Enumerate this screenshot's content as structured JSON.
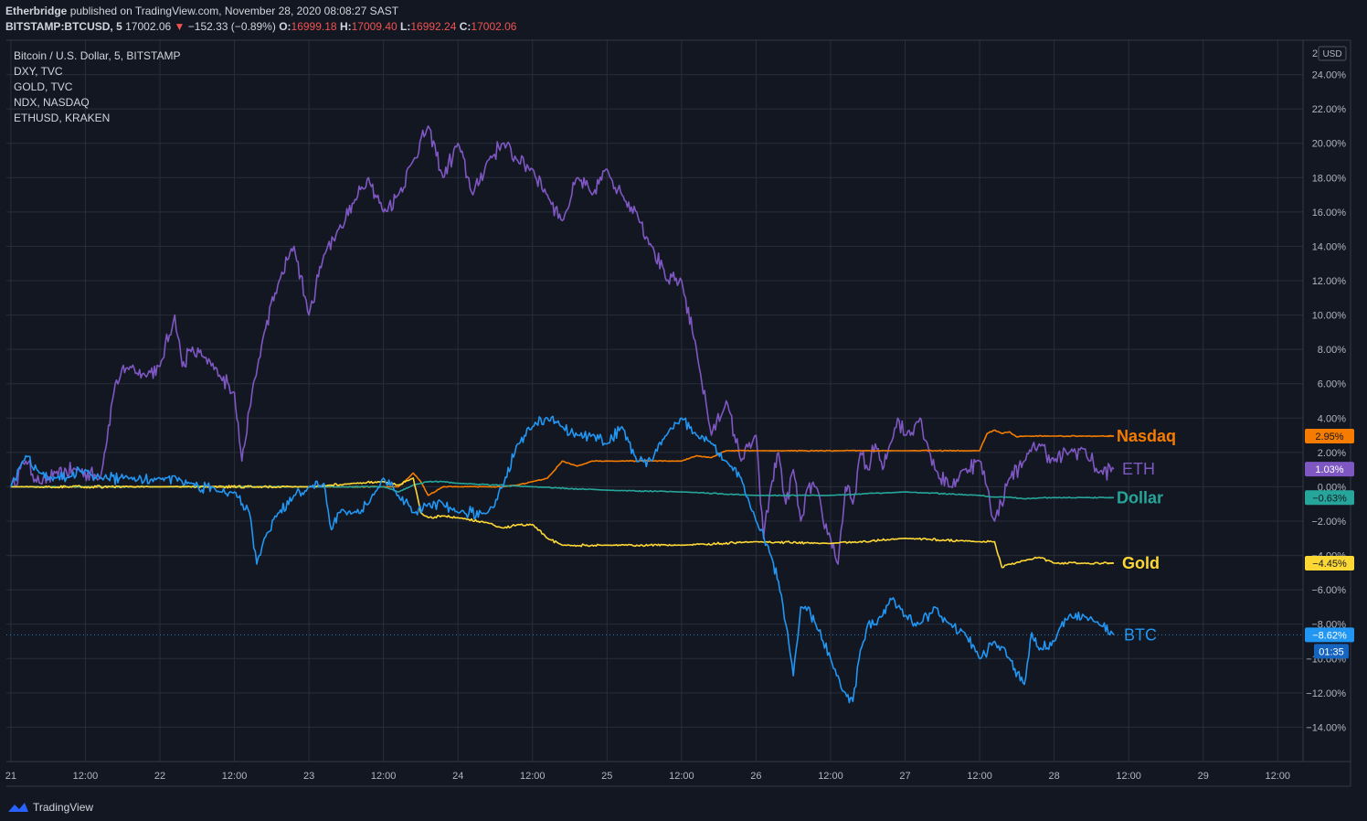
{
  "header": {
    "author": "Etherbridge",
    "published_text": "published on TradingView.com, November 28, 2020 08:08:27 SAST",
    "symbol": "BITSTAMP:BTCUSD, 5",
    "last": "17002.06",
    "change_arrow": "▼",
    "change": "−152.33 (−0.89%)",
    "open_label": "O:",
    "open": "16999.18",
    "high_label": "H:",
    "high": "17009.40",
    "low_label": "L:",
    "low": "16992.24",
    "close_label": "C:",
    "close": "17002.06"
  },
  "legend": [
    "Bitcoin / U.S. Dollar, 5, BITSTAMP",
    "DXY, TVC",
    "GOLD, TVC",
    "NDX, NASDAQ",
    "ETHUSD, KRAKEN"
  ],
  "footer": {
    "brand": "TradingView"
  },
  "colors": {
    "background": "#131722",
    "grid": "#2a2e39",
    "text": "#d1d4dc",
    "axis_text": "#b2b5be",
    "negative": "#ef5350"
  },
  "chart_data": {
    "type": "line",
    "title": "",
    "xlabel": "",
    "ylabel": "",
    "currency_badge": "USD",
    "y_axis_top_label": "2",
    "y_scale": "percent",
    "ylim": [
      -16,
      26
    ],
    "y_ticks": [
      24,
      22,
      20,
      18,
      16,
      14,
      12,
      10,
      8,
      6,
      4,
      2,
      0,
      -2,
      -4,
      -6,
      -8,
      -10,
      -12,
      -14
    ],
    "y_tick_labels": [
      "24.00%",
      "22.00%",
      "20.00%",
      "18.00%",
      "16.00%",
      "14.00%",
      "12.00%",
      "10.00%",
      "8.00%",
      "6.00%",
      "4.00%",
      "2.00%",
      "0.00%",
      "−2.00%",
      "−4.00%",
      "−6.00%",
      "−8.00%",
      "−10.00%",
      "−12.00%",
      "−14.00%"
    ],
    "x_unit": "days since Nov 21 00:00",
    "xlim": [
      -0.03,
      8.67
    ],
    "x_ticks": [
      0,
      0.5,
      1,
      1.5,
      2,
      2.5,
      3,
      3.5,
      4,
      4.5,
      5,
      5.5,
      6,
      6.5,
      7,
      7.5,
      8,
      8.5
    ],
    "x_tick_labels": [
      "21",
      "12:00",
      "22",
      "12:00",
      "23",
      "12:00",
      "24",
      "12:00",
      "25",
      "12:00",
      "26",
      "12:00",
      "27",
      "12:00",
      "28",
      "12:00",
      "29",
      "12:00"
    ],
    "grid": true,
    "series": [
      {
        "name": "ETH",
        "color": "#7e57c2",
        "last_label": "1.03%",
        "x": [
          0,
          0.1,
          0.2,
          0.3,
          0.45,
          0.6,
          0.7,
          0.8,
          0.9,
          1.0,
          1.1,
          1.15,
          1.2,
          1.3,
          1.4,
          1.5,
          1.55,
          1.6,
          1.7,
          1.8,
          1.9,
          2.0,
          2.1,
          2.2,
          2.3,
          2.4,
          2.5,
          2.6,
          2.7,
          2.8,
          2.9,
          3.0,
          3.1,
          3.2,
          3.3,
          3.4,
          3.5,
          3.6,
          3.7,
          3.8,
          3.9,
          4.0,
          4.1,
          4.2,
          4.3,
          4.4,
          4.5,
          4.6,
          4.7,
          4.8,
          4.9,
          5.0,
          5.05,
          5.1,
          5.15,
          5.2,
          5.25,
          5.3,
          5.35,
          5.4,
          5.45,
          5.5,
          5.55,
          5.6,
          5.65,
          5.7,
          5.75,
          5.8,
          5.85,
          5.9,
          5.95,
          6.0,
          6.1,
          6.15,
          6.2,
          6.3,
          6.4,
          6.5,
          6.55,
          6.6,
          6.7,
          6.8,
          6.9,
          7.0,
          7.1,
          7.2,
          7.3,
          7.4
        ],
        "y": [
          0,
          1.5,
          0.2,
          0.8,
          1.0,
          0.5,
          6,
          7,
          6.5,
          7,
          10,
          7,
          8,
          7.5,
          6.5,
          5.5,
          1.5,
          4.5,
          9,
          12,
          14,
          10,
          13.5,
          15,
          16.5,
          18,
          16,
          17,
          19,
          21,
          18,
          20,
          17,
          19,
          20,
          19,
          18.5,
          17,
          15.5,
          18,
          17,
          18.5,
          17,
          16,
          14,
          12,
          12,
          8,
          3,
          5,
          1.5,
          3,
          -3,
          0,
          2,
          -1,
          1,
          -2,
          0,
          0,
          -2,
          -3,
          -4.5,
          0,
          -1,
          2,
          1,
          2.5,
          1,
          2.5,
          4,
          3,
          4,
          2.5,
          1,
          0,
          1,
          1.5,
          0,
          -2,
          0.5,
          1.5,
          2.5,
          1.5,
          2,
          2.2,
          0.8,
          1.03
        ]
      },
      {
        "name": "Nasdaq",
        "color": "#f57c00",
        "last_label": "2.95%",
        "x": [
          0,
          1.0,
          2.0,
          2.6,
          2.7,
          2.75,
          2.8,
          2.9,
          3.0,
          3.2,
          3.3,
          3.4,
          3.5,
          3.6,
          3.7,
          3.8,
          3.9,
          4.0,
          4.5,
          4.6,
          4.7,
          4.8,
          5.0,
          6.0,
          6.5,
          6.55,
          6.6,
          6.65,
          6.7,
          6.75,
          6.8,
          7.0,
          7.2,
          7.3,
          7.4
        ],
        "y": [
          0,
          0,
          0,
          0,
          0.8,
          0.3,
          -0.5,
          0,
          0,
          0,
          0,
          0.1,
          0.3,
          0.5,
          1.5,
          1.2,
          1.5,
          1.5,
          1.5,
          1.8,
          1.7,
          2.1,
          2.1,
          2.1,
          2.1,
          3.1,
          3.3,
          3.1,
          3.2,
          2.9,
          2.95,
          2.95,
          2.95,
          2.95,
          2.95
        ]
      },
      {
        "name": "Dollar",
        "color": "#26a69a",
        "last_label": "−0.63%",
        "x": [
          0,
          0.5,
          1.0,
          1.5,
          2.0,
          2.5,
          2.6,
          2.7,
          2.8,
          2.9,
          3.0,
          3.5,
          4.0,
          4.5,
          5.0,
          5.5,
          6.0,
          6.5,
          6.6,
          6.7,
          6.8,
          6.9,
          7.0,
          7.2,
          7.4
        ],
        "y": [
          0,
          0,
          0,
          0,
          0,
          0,
          -0.3,
          0.1,
          0.3,
          0.3,
          0.2,
          0,
          -0.2,
          -0.3,
          -0.5,
          -0.5,
          -0.3,
          -0.5,
          -0.6,
          -0.6,
          -0.7,
          -0.65,
          -0.63,
          -0.63,
          -0.63
        ]
      },
      {
        "name": "Gold",
        "color": "#fdd835",
        "last_label": "−4.45%",
        "x": [
          0,
          1.0,
          2.0,
          2.3,
          2.5,
          2.6,
          2.7,
          2.75,
          2.8,
          2.9,
          3.0,
          3.2,
          3.3,
          3.4,
          3.5,
          3.6,
          3.7,
          4.0,
          4.5,
          5.0,
          5.5,
          6.0,
          6.5,
          6.6,
          6.65,
          6.7,
          6.75,
          6.8,
          6.9,
          7.0,
          7.2,
          7.4
        ],
        "y": [
          0,
          0,
          0,
          0.2,
          0.3,
          0.1,
          0.5,
          -1.5,
          -1.8,
          -1.7,
          -1.8,
          -2.1,
          -2.4,
          -2.2,
          -2.2,
          -3,
          -3.4,
          -3.4,
          -3.4,
          -3.2,
          -3.3,
          -3,
          -3.2,
          -3.2,
          -4.7,
          -4.5,
          -4.4,
          -4.3,
          -4.1,
          -4.45,
          -4.45,
          -4.45
        ]
      },
      {
        "name": "BTC",
        "color": "#2196f3",
        "last_label": "−8.62%",
        "time_badge": "01:35",
        "x": [
          0,
          0.1,
          0.2,
          0.3,
          0.4,
          0.5,
          0.6,
          0.8,
          1.0,
          1.2,
          1.4,
          1.5,
          1.6,
          1.65,
          1.7,
          1.8,
          1.9,
          2.0,
          2.1,
          2.15,
          2.2,
          2.3,
          2.4,
          2.5,
          2.6,
          2.7,
          2.8,
          2.9,
          3.0,
          3.2,
          3.3,
          3.4,
          3.5,
          3.6,
          3.7,
          3.8,
          3.9,
          4.0,
          4.1,
          4.2,
          4.3,
          4.4,
          4.5,
          4.6,
          4.7,
          4.8,
          4.9,
          5.0,
          5.1,
          5.15,
          5.2,
          5.25,
          5.3,
          5.35,
          5.4,
          5.45,
          5.5,
          5.55,
          5.6,
          5.65,
          5.7,
          5.75,
          5.8,
          5.85,
          5.9,
          5.95,
          6.0,
          6.1,
          6.2,
          6.3,
          6.4,
          6.5,
          6.6,
          6.7,
          6.8,
          6.85,
          6.9,
          7.0,
          7.1,
          7.2,
          7.3,
          7.4
        ],
        "y": [
          0,
          1.8,
          0.8,
          0.5,
          0.6,
          1.0,
          0.5,
          0.5,
          0.5,
          0.2,
          -0.3,
          -0.3,
          -1.5,
          -4.5,
          -3,
          -1.5,
          -0.5,
          0,
          0.2,
          -2.5,
          -1.5,
          -1.5,
          -1,
          0.5,
          -0.5,
          -1.5,
          -1,
          -1,
          -1.5,
          -1.5,
          0,
          2.5,
          3.5,
          4,
          3.5,
          3,
          3,
          2.5,
          3.5,
          1.5,
          1.5,
          3,
          4,
          3,
          2.5,
          1.5,
          0.5,
          -2,
          -4,
          -5.5,
          -8,
          -11,
          -7,
          -7,
          -8,
          -9,
          -10,
          -11,
          -12,
          -12.5,
          -9.5,
          -8,
          -8,
          -7.5,
          -6.5,
          -7,
          -7.5,
          -8,
          -7,
          -8,
          -8.5,
          -10,
          -9,
          -10,
          -11.5,
          -8.5,
          -9.5,
          -9,
          -7.5,
          -7.5,
          -8,
          -8.62
        ]
      }
    ]
  }
}
